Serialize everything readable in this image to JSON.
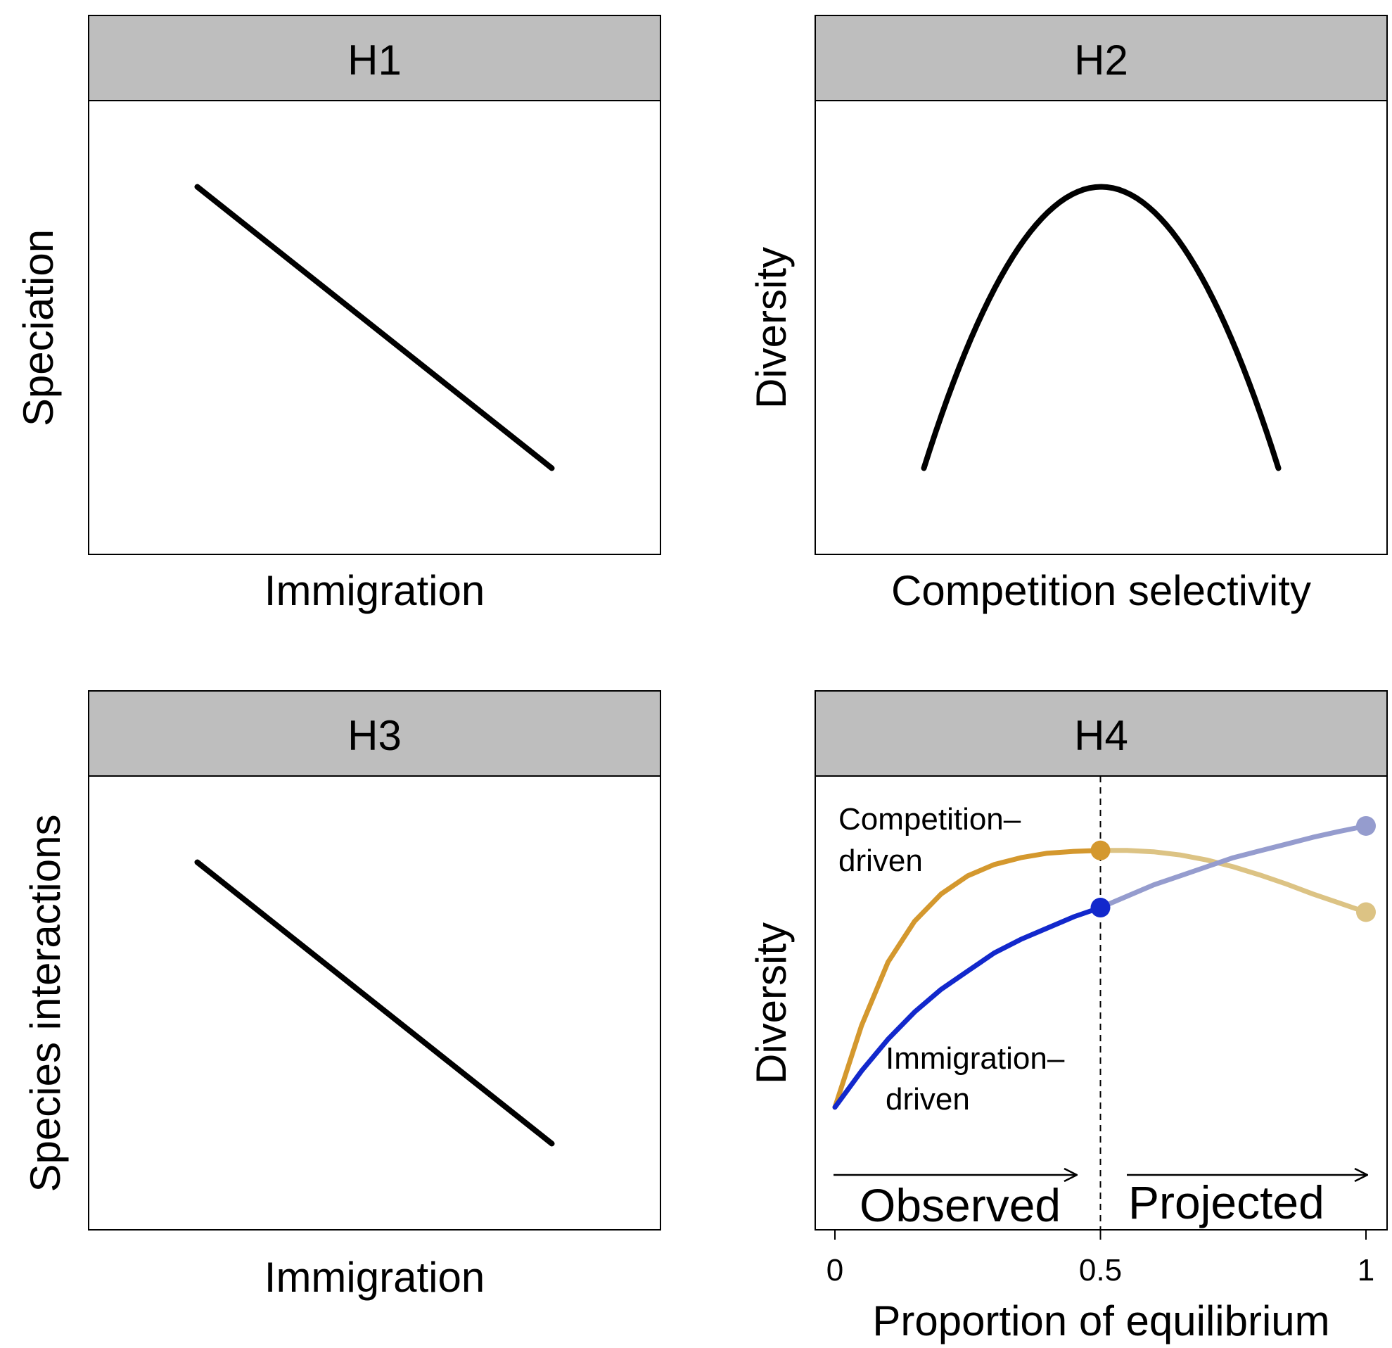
{
  "chart_data": [
    {
      "type": "line",
      "panel": "H1",
      "strip_title": "H1",
      "xlabel": "Immigration",
      "ylabel": "Speciation",
      "series": [
        {
          "x": [
            0.19,
            0.81
          ],
          "y": [
            0.81,
            0.19
          ],
          "color": "#000000"
        }
      ]
    },
    {
      "type": "line",
      "panel": "H2",
      "strip_title": "H2",
      "xlabel": "Competition selectivity",
      "ylabel": "Diversity",
      "series": [
        {
          "shape": "parabola",
          "x_range": [
            0.19,
            0.81
          ],
          "y_peak": 0.81,
          "y_ends": 0.19,
          "color": "#000000"
        }
      ]
    },
    {
      "type": "line",
      "panel": "H3",
      "strip_title": "H3",
      "xlabel": "Immigration",
      "ylabel": "Species interactions",
      "series": [
        {
          "x": [
            0.19,
            0.81
          ],
          "y": [
            0.81,
            0.19
          ],
          "color": "#000000"
        }
      ]
    },
    {
      "type": "line",
      "panel": "H4",
      "strip_title": "H4",
      "xlabel": "Proportion of equilibrium",
      "ylabel": "Diversity",
      "xlim": [
        0,
        1
      ],
      "xticks": [
        0,
        0.5,
        1
      ],
      "xtick_labels": [
        "0",
        "0.5",
        "1"
      ],
      "vline_x": 0.5,
      "series": [
        {
          "name_lines": [
            "Competition–",
            "driven"
          ],
          "color_observed": "#d4982e",
          "color_projected": "#dcc384",
          "x": [
            0,
            0.05,
            0.1,
            0.15,
            0.2,
            0.25,
            0.3,
            0.35,
            0.4,
            0.45,
            0.5,
            0.55,
            0.6,
            0.65,
            0.7,
            0.75,
            0.8,
            0.85,
            0.9,
            0.95,
            1.0
          ],
          "y": [
            0.27,
            0.45,
            0.59,
            0.68,
            0.74,
            0.78,
            0.805,
            0.82,
            0.83,
            0.834,
            0.836,
            0.836,
            0.833,
            0.826,
            0.815,
            0.8,
            0.782,
            0.762,
            0.74,
            0.72,
            0.7
          ]
        },
        {
          "name_lines": [
            "Immigration–",
            "driven"
          ],
          "color_observed": "#1228cc",
          "color_projected": "#959cce",
          "x": [
            0,
            0.05,
            0.1,
            0.15,
            0.2,
            0.25,
            0.3,
            0.35,
            0.4,
            0.45,
            0.5,
            0.55,
            0.6,
            0.65,
            0.7,
            0.75,
            0.8,
            0.85,
            0.9,
            0.95,
            1.0
          ],
          "y": [
            0.27,
            0.35,
            0.42,
            0.48,
            0.53,
            0.57,
            0.61,
            0.64,
            0.665,
            0.69,
            0.71,
            0.735,
            0.76,
            0.78,
            0.8,
            0.82,
            0.835,
            0.85,
            0.865,
            0.878,
            0.89
          ]
        }
      ],
      "annotations": {
        "observed": "Observed",
        "projected": "Projected"
      }
    }
  ]
}
